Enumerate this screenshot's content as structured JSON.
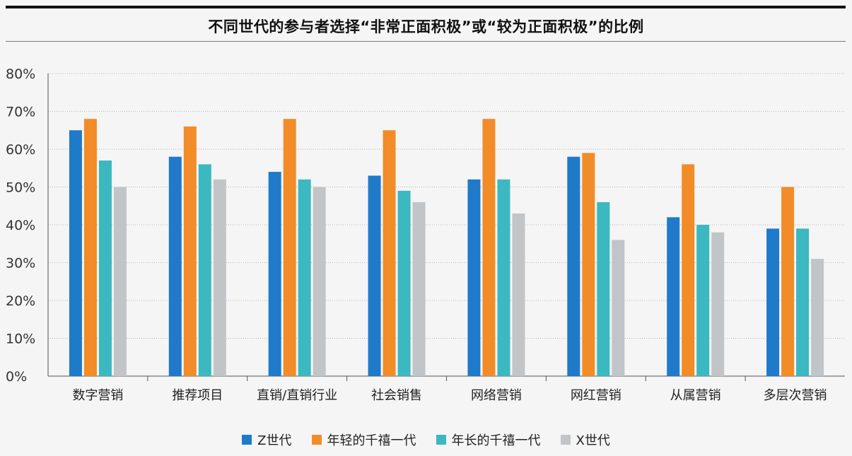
{
  "chart_data": {
    "type": "bar",
    "title": "不同世代的参与者选择“非常正面积极”或“较为正面积极”的比例",
    "xlabel": "",
    "ylabel": "",
    "ylim": [
      0,
      80
    ],
    "yticks": [
      0,
      10,
      20,
      30,
      40,
      50,
      60,
      70,
      80
    ],
    "ytick_suffix": "%",
    "grid": true,
    "legend_position": "bottom",
    "categories": [
      "数字营销",
      "推荐项目",
      "直销/直销行业",
      "社会销售",
      "网络营销",
      "网红营销",
      "从属营销",
      "多层次营销"
    ],
    "series": [
      {
        "name": "Z世代",
        "color": "#1f7ac9",
        "values": [
          65,
          58,
          54,
          53,
          52,
          58,
          42,
          39
        ]
      },
      {
        "name": "年轻的千禧一代",
        "color": "#f28c28",
        "values": [
          68,
          66,
          68,
          65,
          68,
          59,
          56,
          50
        ]
      },
      {
        "name": "年长的千禧一代",
        "color": "#3bb8c0",
        "values": [
          57,
          56,
          52,
          49,
          52,
          46,
          40,
          39
        ]
      },
      {
        "name": "X世代",
        "color": "#c1c5c8",
        "values": [
          50,
          52,
          50,
          46,
          43,
          36,
          38,
          31
        ]
      }
    ]
  }
}
